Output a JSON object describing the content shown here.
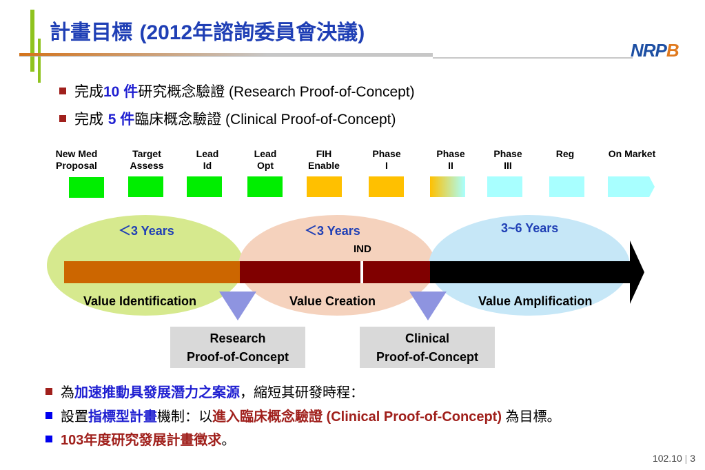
{
  "title": {
    "pre": "計畫目標 ",
    "paren": "(2012",
    "cjk": "年諮詢委員會決議",
    "close": ")"
  },
  "logo": {
    "part1": "NRP",
    "part2": "B"
  },
  "bullets_top": [
    {
      "pre": "完成",
      "num": "10 件",
      "cjk": "研究概念驗證",
      "lat": " (Research Proof-of-Concept)"
    },
    {
      "pre": "完成 ",
      "num": " 5 件",
      "cjk": "臨床概念驗證",
      "lat": " (Clinical Proof-of-Concept)"
    }
  ],
  "stages": [
    {
      "l1": "New Med",
      "l2": "Proposal",
      "color": "#00ee00"
    },
    {
      "l1": "Target",
      "l2": "Assess",
      "color": "#00ee00"
    },
    {
      "l1": "Lead",
      "l2": "Id",
      "color": "#00ee00"
    },
    {
      "l1": "Lead",
      "l2": "Opt",
      "color": "#00ee00"
    },
    {
      "l1": "FIH",
      "l2": "Enable",
      "color": "#ffc000"
    },
    {
      "l1": "Phase",
      "l2": "I",
      "color": "#ffc000"
    },
    {
      "l1": "Phase",
      "l2": "II",
      "color": "gradient"
    },
    {
      "l1": "Phase",
      "l2": "III",
      "color": "#a8ffff"
    },
    {
      "l1": "",
      "l2": "Reg",
      "color": "#a8ffff"
    },
    {
      "l1": "",
      "l2": "On Market",
      "color": "#a8ffff"
    }
  ],
  "phases": [
    {
      "years": "＜3 Years",
      "label": "Value Identification",
      "oval_color": "#d6e98e",
      "bar_color": "#cc6600"
    },
    {
      "years": "＜3 Years",
      "label": "Value Creation",
      "oval_color": "#f5d2bd",
      "bar_color": "#800000"
    },
    {
      "years": "3~6 Years",
      "label": "Value Amplification",
      "oval_color": "#c6e7f7",
      "bar_color": "#000000"
    }
  ],
  "ind_label": "IND",
  "poc_boxes": [
    {
      "l1": "Research",
      "l2": "Proof-of-Concept"
    },
    {
      "l1": "Clinical",
      "l2": "Proof-of-Concept"
    }
  ],
  "bullets_bottom": [
    {
      "a": "為",
      "b": "加速推動具發展潛力之案源",
      "c": "，縮短其研發時程："
    },
    {
      "a": "設置",
      "b": "指標型計畫",
      "c": "機制：以",
      "d": "進入臨床概念驗證",
      "e": " (Clinical Proof-of-Concept) ",
      "f": "為目標。"
    },
    {
      "a": "103",
      "b": "年度研究發展計畫徵求",
      "c": "。"
    }
  ],
  "footer": {
    "date": "102.10",
    "sep": "|",
    "page": "3"
  }
}
